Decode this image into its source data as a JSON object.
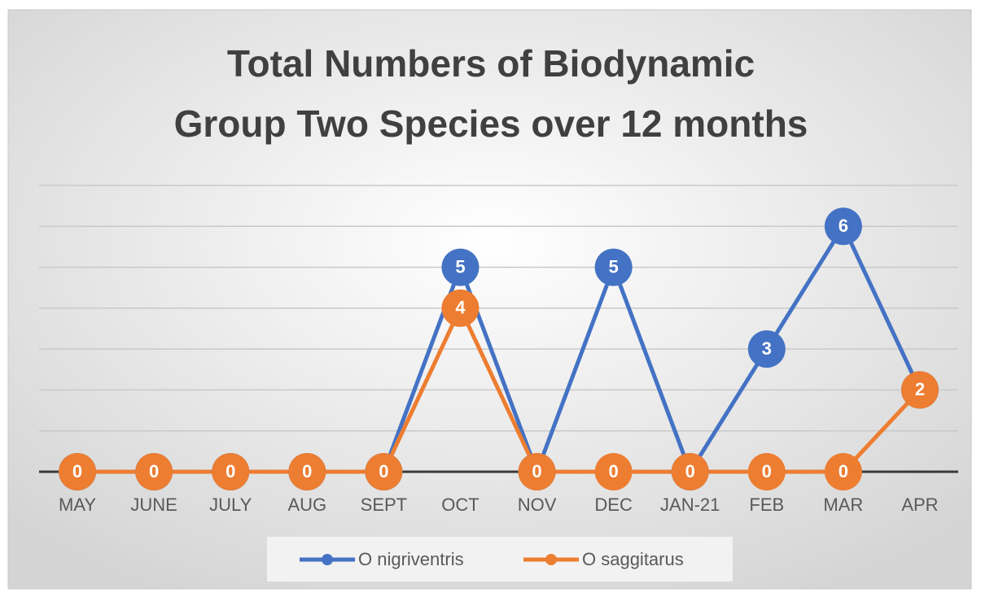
{
  "chart_data": {
    "type": "line",
    "title": "Total Numbers of Biodynamic Group Two Species over 12 months",
    "categories": [
      "MAY",
      "JUNE",
      "JULY",
      "AUG",
      "SEPT",
      "OCT",
      "NOV",
      "DEC",
      "JAN-21",
      "FEB",
      "MAR",
      "APR"
    ],
    "series": [
      {
        "name": "O nigriventris",
        "color": "#4472c4",
        "values": [
          0,
          0,
          0,
          0,
          0,
          5,
          0,
          5,
          0,
          3,
          6,
          2
        ]
      },
      {
        "name": "O saggitarus",
        "color": "#ed7d31",
        "values": [
          0,
          0,
          0,
          0,
          0,
          4,
          0,
          0,
          0,
          0,
          0,
          2
        ]
      }
    ],
    "ylim": [
      0,
      7
    ],
    "yticks": [
      0,
      1,
      2,
      3,
      4,
      5,
      6,
      7
    ],
    "grid": true,
    "legend": "bottom"
  }
}
